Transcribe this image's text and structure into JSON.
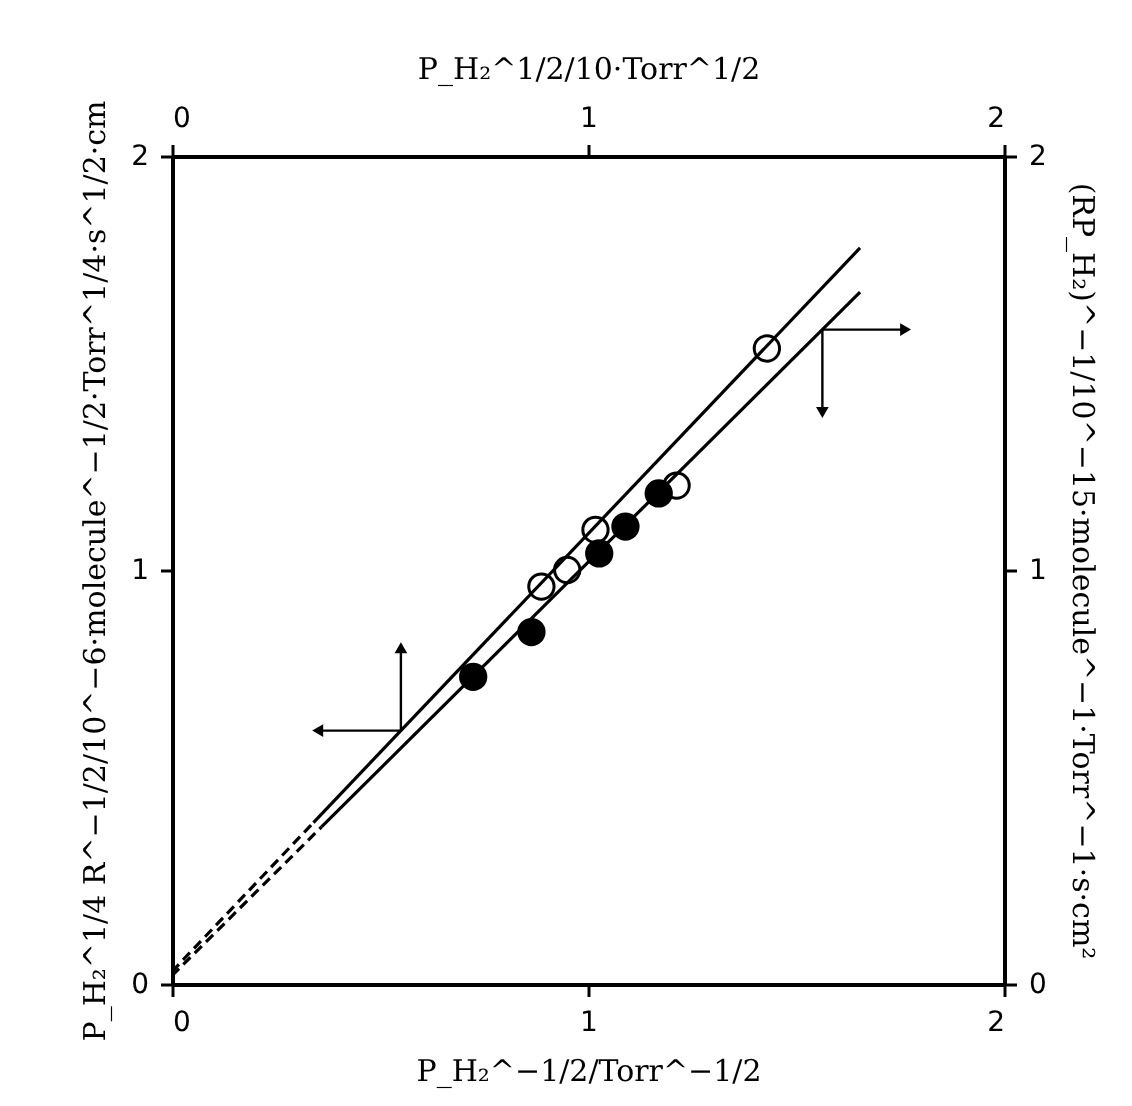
{
  "chart_data": {
    "type": "scatter",
    "xlabel": "P_H₂^−1/2/Torr^−1/2",
    "x2label": "P_H₂^1/2/10·Torr^1/2",
    "ylabel": "P_H₂^1/4 R^−1/2/10^−6·molecule^−1/2·Torr^1/4·s^1/2·cm",
    "y2label": "(RP_H₂)^−1/10^−15·molecule^−1·Torr^−1·s·cm²",
    "xlim": [
      0,
      2
    ],
    "xticks": [
      0,
      1,
      2
    ],
    "ylim": [
      0,
      2
    ],
    "yticks": [
      0,
      1,
      2
    ],
    "x2lim": [
      0,
      2
    ],
    "x2ticks": [
      0,
      1,
      2
    ],
    "y2lim": [
      0,
      2
    ],
    "y2ticks": [
      0,
      1,
      2
    ],
    "grid": false,
    "series": [
      {
        "type": "scatter",
        "marker": "circle",
        "color": "#ffffff",
        "x": [
          0.888,
          0.95,
          1.018,
          1.213,
          1.43
        ],
        "values": [
          0.96,
          1.0,
          1.097,
          1.204,
          1.535
        ]
      },
      {
        "type": "line",
        "color": "#000000",
        "line_style": "solid",
        "x": [
          0.34,
          1.654
        ],
        "values": [
          0.39,
          1.778
        ]
      },
      {
        "type": "line",
        "color": "#000000",
        "line_style": "dashed",
        "x": [
          0.0,
          0.34
        ],
        "values": [
          0.03,
          0.39
        ]
      },
      {
        "type": "scatter",
        "marker": "circle",
        "axis": "y2",
        "color": "#000000",
        "x": [
          0.724,
          0.864,
          1.027,
          1.09,
          1.17
        ],
        "values": [
          0.742,
          0.85,
          1.04,
          1.105,
          1.185
        ]
      },
      {
        "type": "line",
        "axis": "y2",
        "color": "#000000",
        "line_style": "solid",
        "x": [
          0.36,
          1.654
        ],
        "values": [
          0.38,
          1.671
        ]
      },
      {
        "type": "line",
        "axis": "y2",
        "color": "#000000",
        "line_style": "dashed",
        "x": [
          0.0,
          0.36
        ],
        "values": [
          0.02,
          0.38
        ]
      }
    ]
  }
}
